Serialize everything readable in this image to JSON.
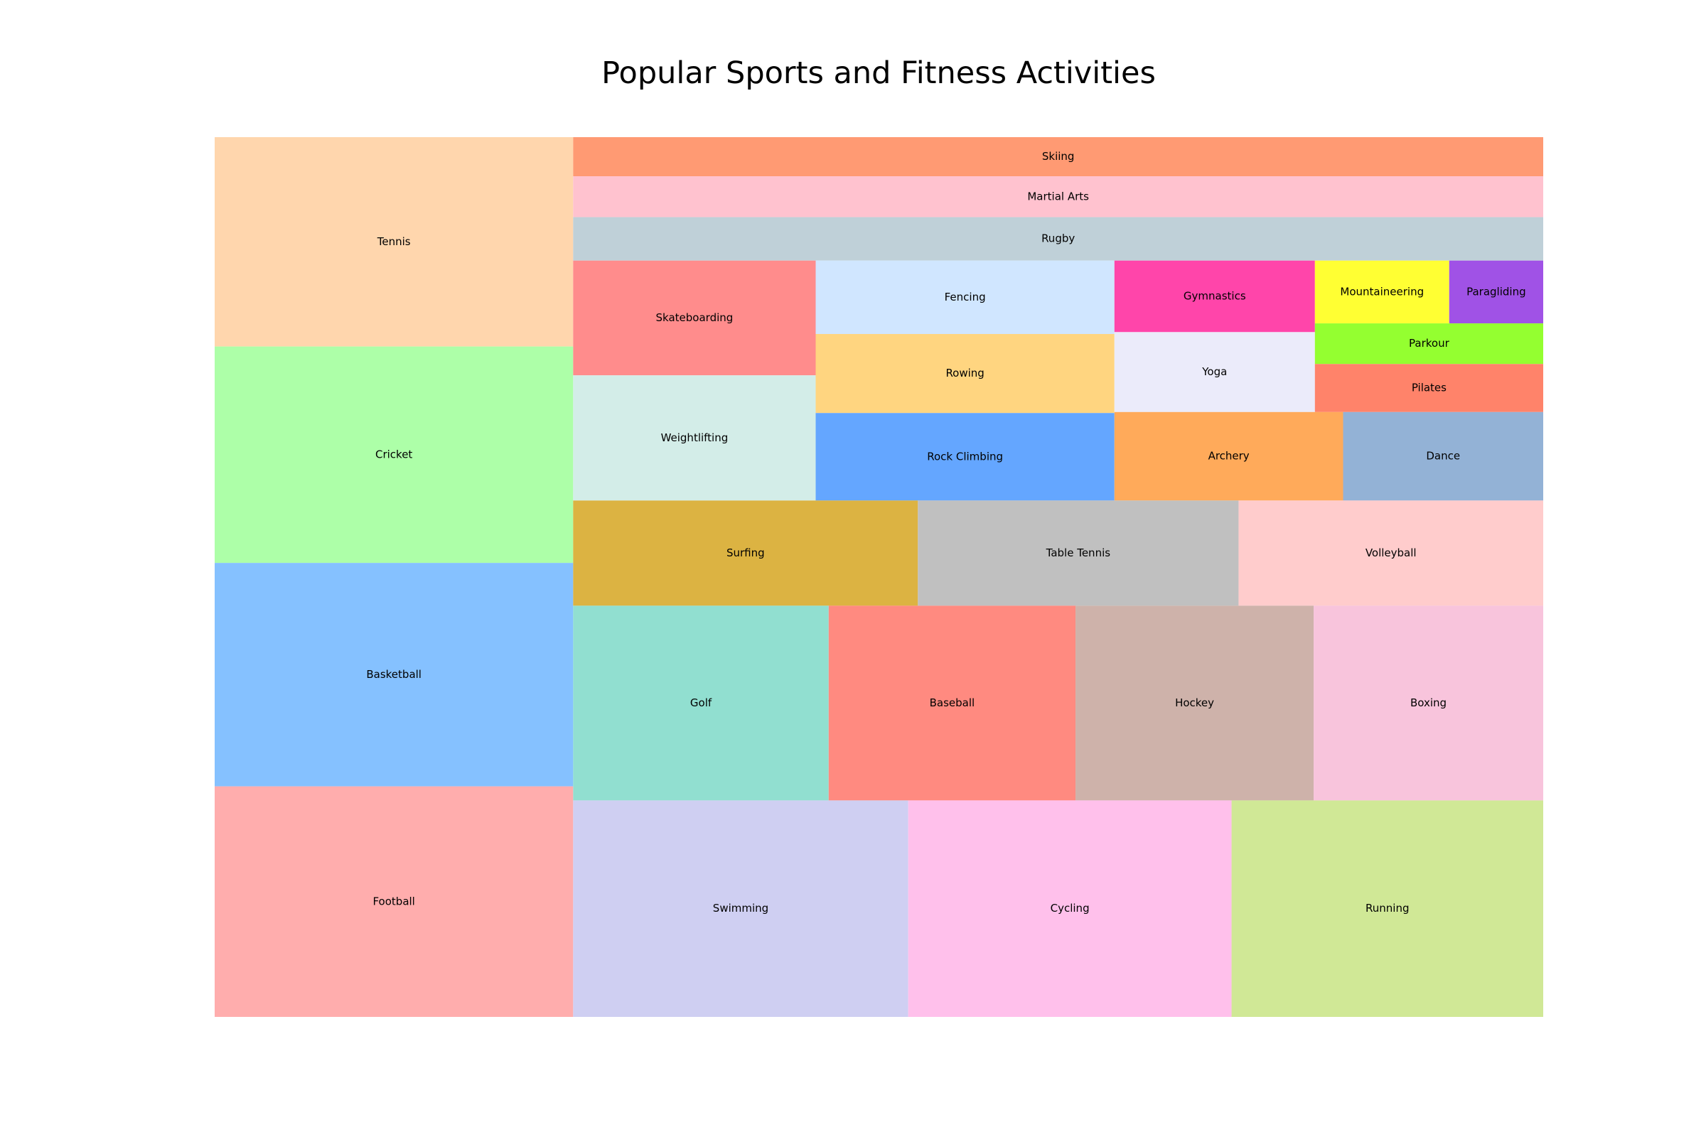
{
  "chart_data": {
    "type": "treemap",
    "title": "Popular Sports and Fitness Activities",
    "units": "relative share (estimated from tile area)",
    "items": [
      {
        "label": "Football",
        "value": 9.8,
        "color": "#ffadad"
      },
      {
        "label": "Basketball",
        "value": 9.5,
        "color": "#85c1ff"
      },
      {
        "label": "Cricket",
        "value": 9.2,
        "color": "#adffa8"
      },
      {
        "label": "Tennis",
        "value": 8.9,
        "color": "#ffd6ad"
      },
      {
        "label": "Swimming",
        "value": 8.6,
        "color": "#cfcff2"
      },
      {
        "label": "Cycling",
        "value": 8.3,
        "color": "#ffc0eb"
      },
      {
        "label": "Running",
        "value": 8.0,
        "color": "#d0e896"
      },
      {
        "label": "Golf",
        "value": 5.9,
        "color": "#91dfd0"
      },
      {
        "label": "Baseball",
        "value": 5.7,
        "color": "#ff8a80"
      },
      {
        "label": "Hockey",
        "value": 5.5,
        "color": "#ceb2aa"
      },
      {
        "label": "Boxing",
        "value": 5.3,
        "color": "#f8c4dc"
      },
      {
        "label": "Rugby",
        "value": 5.0,
        "color": "#bfd0d8"
      },
      {
        "label": "Surfing",
        "value": 4.3,
        "color": "#dcb342"
      },
      {
        "label": "Table Tennis",
        "value": 4.0,
        "color": "#c0c0c0"
      },
      {
        "label": "Volleyball",
        "value": 3.8,
        "color": "#ffcccc"
      },
      {
        "label": "Martial Arts",
        "value": 4.7,
        "color": "#ffc2cf"
      },
      {
        "label": "Skiing",
        "value": 4.5,
        "color": "#ff9a73"
      },
      {
        "label": "Weightlifting",
        "value": 3.6,
        "color": "#d3ede8"
      },
      {
        "label": "Skateboarding",
        "value": 3.3,
        "color": "#ff8c8c"
      },
      {
        "label": "Rock Climbing",
        "value": 3.1,
        "color": "#64a6ff"
      },
      {
        "label": "Rowing",
        "value": 2.8,
        "color": "#ffd580"
      },
      {
        "label": "Fencing",
        "value": 2.6,
        "color": "#d0e6ff"
      },
      {
        "label": "Archery",
        "value": 2.4,
        "color": "#ffaa5a"
      },
      {
        "label": "Dance",
        "value": 2.1,
        "color": "#93b2d6"
      },
      {
        "label": "Yoga",
        "value": 1.9,
        "color": "#ebebfa"
      },
      {
        "label": "Gymnastics",
        "value": 1.7,
        "color": "#ff45aa"
      },
      {
        "label": "Pilates",
        "value": 1.3,
        "color": "#ff836a"
      },
      {
        "label": "Parkour",
        "value": 1.1,
        "color": "#94ff30"
      },
      {
        "label": "Mountaineering",
        "value": 1.0,
        "color": "#ffff33"
      },
      {
        "label": "Paragliding",
        "value": 0.7,
        "color": "#a052e6"
      }
    ]
  }
}
